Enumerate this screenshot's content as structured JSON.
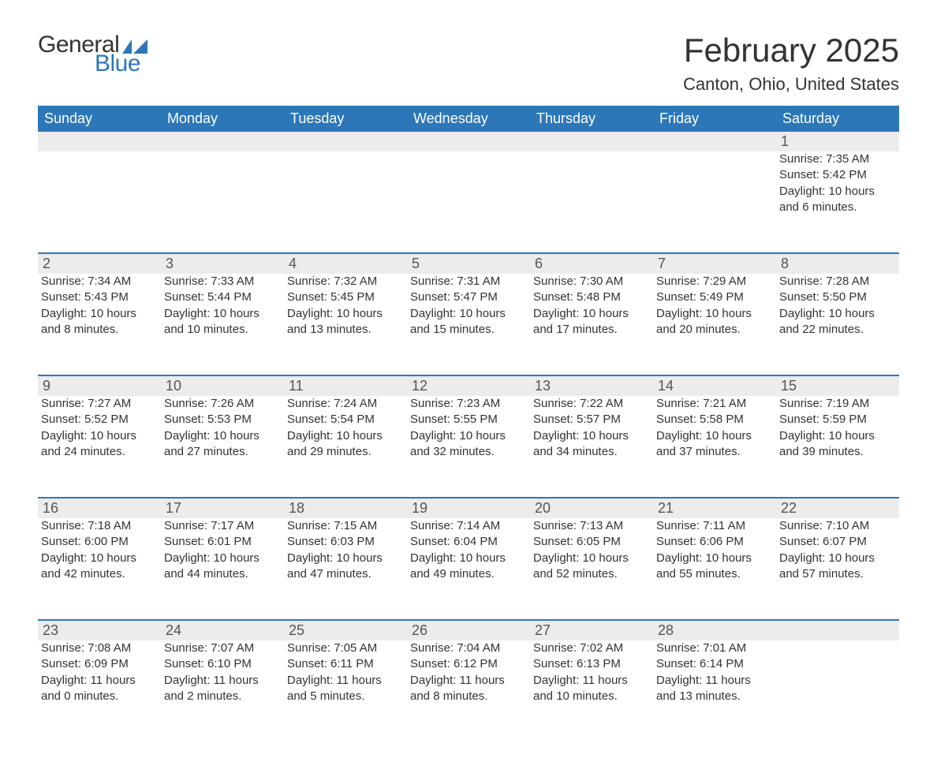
{
  "logo": {
    "general": "General",
    "blue": "Blue",
    "shape_color": "#2c77b8"
  },
  "title": "February 2025",
  "location": "Canton, Ohio, United States",
  "colors": {
    "header_bg": "#2c77b8",
    "header_text": "#ffffff",
    "daynum_bg": "#ececec",
    "text": "#333333",
    "rule": "#2c77b8",
    "page_bg": "#ffffff"
  },
  "typography": {
    "title_fontsize": 42,
    "location_fontsize": 22,
    "header_fontsize": 18,
    "daynum_fontsize": 18,
    "cell_fontsize": 15
  },
  "layout": {
    "columns": 7,
    "rows": 5,
    "grid_cols_css": "repeat(7, 1fr)"
  },
  "day_headers": [
    "Sunday",
    "Monday",
    "Tuesday",
    "Wednesday",
    "Thursday",
    "Friday",
    "Saturday"
  ],
  "labels": {
    "sunrise": "Sunrise:",
    "sunset": "Sunset:",
    "daylight": "Daylight:"
  },
  "weeks": [
    [
      null,
      null,
      null,
      null,
      null,
      null,
      {
        "n": "1",
        "sunrise": "7:35 AM",
        "sunset": "5:42 PM",
        "daylight": "10 hours and 6 minutes."
      }
    ],
    [
      {
        "n": "2",
        "sunrise": "7:34 AM",
        "sunset": "5:43 PM",
        "daylight": "10 hours and 8 minutes."
      },
      {
        "n": "3",
        "sunrise": "7:33 AM",
        "sunset": "5:44 PM",
        "daylight": "10 hours and 10 minutes."
      },
      {
        "n": "4",
        "sunrise": "7:32 AM",
        "sunset": "5:45 PM",
        "daylight": "10 hours and 13 minutes."
      },
      {
        "n": "5",
        "sunrise": "7:31 AM",
        "sunset": "5:47 PM",
        "daylight": "10 hours and 15 minutes."
      },
      {
        "n": "6",
        "sunrise": "7:30 AM",
        "sunset": "5:48 PM",
        "daylight": "10 hours and 17 minutes."
      },
      {
        "n": "7",
        "sunrise": "7:29 AM",
        "sunset": "5:49 PM",
        "daylight": "10 hours and 20 minutes."
      },
      {
        "n": "8",
        "sunrise": "7:28 AM",
        "sunset": "5:50 PM",
        "daylight": "10 hours and 22 minutes."
      }
    ],
    [
      {
        "n": "9",
        "sunrise": "7:27 AM",
        "sunset": "5:52 PM",
        "daylight": "10 hours and 24 minutes."
      },
      {
        "n": "10",
        "sunrise": "7:26 AM",
        "sunset": "5:53 PM",
        "daylight": "10 hours and 27 minutes."
      },
      {
        "n": "11",
        "sunrise": "7:24 AM",
        "sunset": "5:54 PM",
        "daylight": "10 hours and 29 minutes."
      },
      {
        "n": "12",
        "sunrise": "7:23 AM",
        "sunset": "5:55 PM",
        "daylight": "10 hours and 32 minutes."
      },
      {
        "n": "13",
        "sunrise": "7:22 AM",
        "sunset": "5:57 PM",
        "daylight": "10 hours and 34 minutes."
      },
      {
        "n": "14",
        "sunrise": "7:21 AM",
        "sunset": "5:58 PM",
        "daylight": "10 hours and 37 minutes."
      },
      {
        "n": "15",
        "sunrise": "7:19 AM",
        "sunset": "5:59 PM",
        "daylight": "10 hours and 39 minutes."
      }
    ],
    [
      {
        "n": "16",
        "sunrise": "7:18 AM",
        "sunset": "6:00 PM",
        "daylight": "10 hours and 42 minutes."
      },
      {
        "n": "17",
        "sunrise": "7:17 AM",
        "sunset": "6:01 PM",
        "daylight": "10 hours and 44 minutes."
      },
      {
        "n": "18",
        "sunrise": "7:15 AM",
        "sunset": "6:03 PM",
        "daylight": "10 hours and 47 minutes."
      },
      {
        "n": "19",
        "sunrise": "7:14 AM",
        "sunset": "6:04 PM",
        "daylight": "10 hours and 49 minutes."
      },
      {
        "n": "20",
        "sunrise": "7:13 AM",
        "sunset": "6:05 PM",
        "daylight": "10 hours and 52 minutes."
      },
      {
        "n": "21",
        "sunrise": "7:11 AM",
        "sunset": "6:06 PM",
        "daylight": "10 hours and 55 minutes."
      },
      {
        "n": "22",
        "sunrise": "7:10 AM",
        "sunset": "6:07 PM",
        "daylight": "10 hours and 57 minutes."
      }
    ],
    [
      {
        "n": "23",
        "sunrise": "7:08 AM",
        "sunset": "6:09 PM",
        "daylight": "11 hours and 0 minutes."
      },
      {
        "n": "24",
        "sunrise": "7:07 AM",
        "sunset": "6:10 PM",
        "daylight": "11 hours and 2 minutes."
      },
      {
        "n": "25",
        "sunrise": "7:05 AM",
        "sunset": "6:11 PM",
        "daylight": "11 hours and 5 minutes."
      },
      {
        "n": "26",
        "sunrise": "7:04 AM",
        "sunset": "6:12 PM",
        "daylight": "11 hours and 8 minutes."
      },
      {
        "n": "27",
        "sunrise": "7:02 AM",
        "sunset": "6:13 PM",
        "daylight": "11 hours and 10 minutes."
      },
      {
        "n": "28",
        "sunrise": "7:01 AM",
        "sunset": "6:14 PM",
        "daylight": "11 hours and 13 minutes."
      },
      null
    ]
  ]
}
